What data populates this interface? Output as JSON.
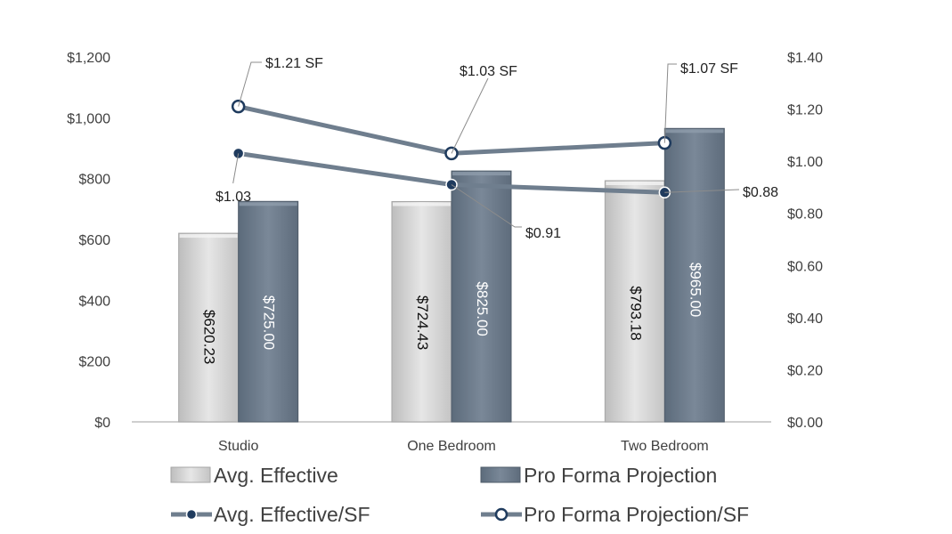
{
  "chart_data": {
    "type": "bar",
    "categories": [
      "Studio",
      "One Bedroom",
      "Two Bedroom"
    ],
    "series": [
      {
        "name": "Avg. Effective",
        "axis": "left",
        "kind": "bar",
        "color": "#d4d4d4",
        "values": [
          620.23,
          724.43,
          793.18
        ],
        "labels": [
          "$620.23",
          "$724.43",
          "$793.18"
        ]
      },
      {
        "name": "Pro Forma Projection",
        "axis": "left",
        "kind": "bar",
        "color": "#6f7e8e",
        "values": [
          725.0,
          825.0,
          965.0
        ],
        "labels": [
          "$725.00",
          "$825.00",
          "$965.00"
        ]
      },
      {
        "name": "Avg. Effective/SF",
        "axis": "right",
        "kind": "line",
        "color": "#6f7e8e",
        "values": [
          1.03,
          0.91,
          0.88
        ],
        "labels": [
          "$1.03",
          "$0.91",
          "$0.88"
        ]
      },
      {
        "name": "Pro Forma Projection/SF",
        "axis": "right",
        "kind": "line",
        "color": "#6f7e8e",
        "values": [
          1.21,
          1.03,
          1.07
        ],
        "labels": [
          "$1.21 SF",
          "$1.03 SF",
          "$1.07 SF"
        ]
      }
    ],
    "y_left": {
      "ylim": [
        0,
        1200
      ],
      "ticks": [
        "$0",
        "$200",
        "$400",
        "$600",
        "$800",
        "$1,000",
        "$1,200"
      ]
    },
    "y_right": {
      "ylim": [
        0,
        1.4
      ],
      "ticks": [
        "$0.00",
        "$0.20",
        "$0.40",
        "$0.60",
        "$0.80",
        "$1.00",
        "$1.20",
        "$1.40"
      ]
    },
    "title": "",
    "xlabel": "",
    "ylabel": "",
    "grid": false,
    "legend_position": "bottom"
  }
}
